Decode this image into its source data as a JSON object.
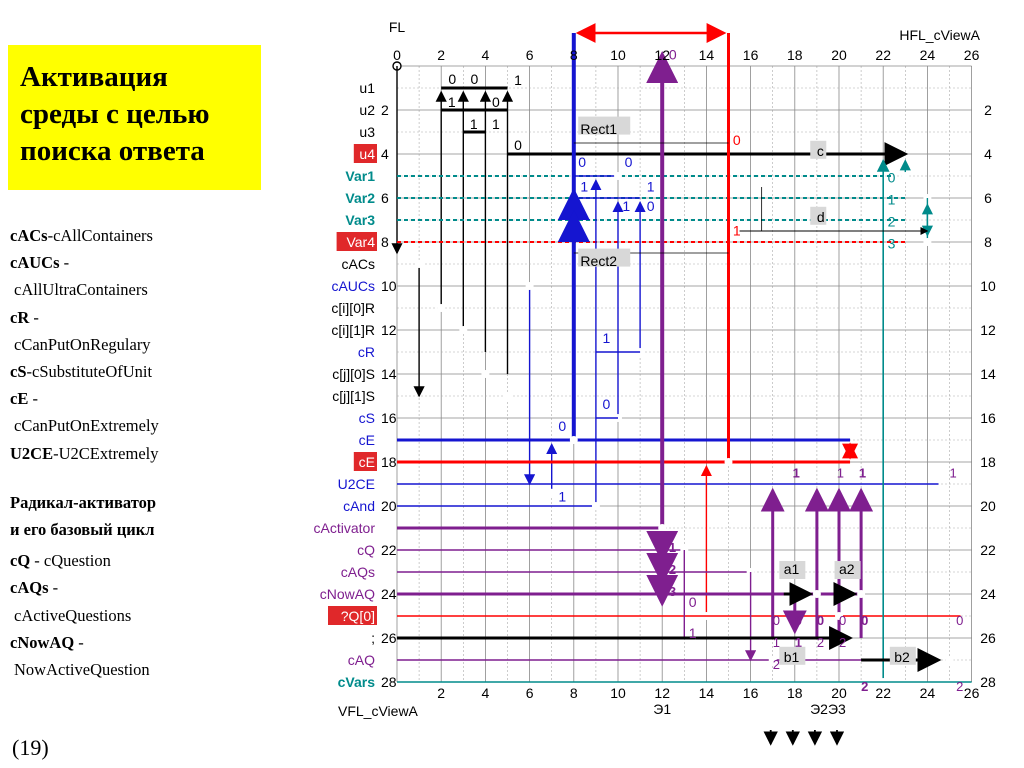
{
  "title_lines": [
    "Активация",
    "среды с целью",
    "поиска ответа"
  ],
  "glossary": [
    {
      "b": "cACs",
      "t": "-cAllContainers",
      "ind": false
    },
    {
      "b": "cAUCs",
      "t": " -",
      "ind": false
    },
    {
      "b": "",
      "t": "cAllUltraContainers",
      "ind": true
    },
    {
      "b": "cR",
      "t": " -",
      "ind": false
    },
    {
      "b": "",
      "t": "cCanPutOnRegulary",
      "ind": true
    },
    {
      "b": "cS",
      "t": "-cSubstituteOfUnit",
      "ind": false
    },
    {
      "b": "cE",
      "t": " -",
      "ind": false
    },
    {
      "b": "",
      "t": "cCanPutOnExtremely",
      "ind": true
    },
    {
      "b": "U2CE",
      "t": "-U2CExtremely",
      "ind": false
    },
    {
      "gap": true
    },
    {
      "b": "Радикал-активатор",
      "t": "",
      "ind": false
    },
    {
      "b": "и его базовый цикл",
      "t": "",
      "ind": false
    },
    {
      "gapsmall": true
    },
    {
      "b": "cQ",
      "t": " - cQuestion",
      "ind": false
    },
    {
      "b": "cAQs",
      "t": " -",
      "ind": false
    },
    {
      "b": "",
      "t": "cActiveQuestions",
      "ind": true
    },
    {
      "b": "cNowAQ",
      "t": " -",
      "ind": false
    },
    {
      "b": "",
      "t": "NowActiveQuestion",
      "ind": true
    }
  ],
  "footer": "(19)",
  "diagram": {
    "fl_label": "FL",
    "hfl_label": "HFL_cViewA",
    "vfl_label": "VFL_cViewA",
    "top_ticks": [
      "0",
      "2",
      "4",
      "6",
      "8",
      "10",
      "12",
      "14",
      "16",
      "18",
      "20",
      "22",
      "24",
      "26"
    ],
    "bottom_ticks": [
      "2",
      "4",
      "6",
      "8",
      "10",
      "12",
      "14",
      "16",
      "18",
      "20",
      "22",
      "24",
      "26"
    ],
    "right_ticks": [
      "2",
      "4",
      "6",
      "8",
      "10",
      "12",
      "14",
      "16",
      "18",
      "20",
      "22",
      "24",
      "26",
      "28"
    ],
    "rows": [
      {
        "name": "u1",
        "y": 1,
        "color": "#000000",
        "num": "",
        "hl": false,
        "bold": false
      },
      {
        "name": "u2",
        "y": 2,
        "color": "#000000",
        "num": "2",
        "hl": false,
        "bold": false
      },
      {
        "name": "u3",
        "y": 3,
        "color": "#000000",
        "num": "",
        "hl": false,
        "bold": false
      },
      {
        "name": "u4",
        "y": 4,
        "color": "#ffffff",
        "num": "4",
        "hl": true,
        "bold": false
      },
      {
        "name": "Var1",
        "y": 5,
        "color": "#008b8b",
        "num": "",
        "hl": false,
        "bold": true
      },
      {
        "name": "Var2",
        "y": 6,
        "color": "#008b8b",
        "num": "6",
        "hl": false,
        "bold": true
      },
      {
        "name": "Var3",
        "y": 7,
        "color": "#008b8b",
        "num": "",
        "hl": false,
        "bold": true
      },
      {
        "name": "Var4",
        "y": 8,
        "color": "#ffffff",
        "num": "8",
        "hl": true,
        "bold": false
      },
      {
        "name": "cACs",
        "y": 9,
        "color": "#000000",
        "num": "",
        "hl": false,
        "bold": false
      },
      {
        "name": "cAUCs",
        "y": 10,
        "color": "#1515d0",
        "num": "10",
        "hl": false,
        "bold": false
      },
      {
        "name": "c[i][0]R",
        "y": 11,
        "color": "#000000",
        "num": "",
        "hl": false,
        "bold": false
      },
      {
        "name": "c[i][1]R",
        "y": 12,
        "color": "#000000",
        "num": "12",
        "hl": false,
        "bold": false
      },
      {
        "name": "cR",
        "y": 13,
        "color": "#1515d0",
        "num": "",
        "hl": false,
        "bold": false
      },
      {
        "name": "c[j][0]S",
        "y": 14,
        "color": "#000000",
        "num": "14",
        "hl": false,
        "bold": false
      },
      {
        "name": "c[j][1]S",
        "y": 15,
        "color": "#000000",
        "num": "",
        "hl": false,
        "bold": false
      },
      {
        "name": "cS",
        "y": 16,
        "color": "#1515d0",
        "num": "16",
        "hl": false,
        "bold": false
      },
      {
        "name": "cE",
        "y": 17,
        "color": "#1515d0",
        "num": "",
        "hl": false,
        "bold": false
      },
      {
        "name": "cE",
        "y": 18,
        "color": "#ffffff",
        "num": "18",
        "hl": true,
        "bold": false
      },
      {
        "name": "U2CE",
        "y": 19,
        "color": "#1515d0",
        "num": "",
        "hl": false,
        "bold": false
      },
      {
        "name": "cAnd",
        "y": 20,
        "color": "#1515d0",
        "num": "20",
        "hl": false,
        "bold": false
      },
      {
        "name": "cActivator",
        "y": 21,
        "color": "#7f1f8f",
        "num": "",
        "hl": false,
        "bold": false
      },
      {
        "name": "cQ",
        "y": 22,
        "color": "#7f1f8f",
        "num": "22",
        "hl": false,
        "bold": false
      },
      {
        "name": "cAQs",
        "y": 23,
        "color": "#7f1f8f",
        "num": "",
        "hl": false,
        "bold": false
      },
      {
        "name": "cNowAQ",
        "y": 24,
        "color": "#7f1f8f",
        "num": "24",
        "hl": false,
        "bold": false
      },
      {
        "name": "?Q[0]",
        "y": 25,
        "color": "#ffffff",
        "num": "",
        "hl": true,
        "bold": false
      },
      {
        "name": ";",
        "y": 26,
        "color": "#000000",
        "num": "26",
        "hl": false,
        "bold": false
      },
      {
        "name": "cAQ",
        "y": 27,
        "color": "#7f1f8f",
        "num": "",
        "hl": false,
        "bold": false
      },
      {
        "name": "cVars",
        "y": 28,
        "color": "#008b8b",
        "num": "28",
        "hl": false,
        "bold": true
      }
    ],
    "boxes": {
      "rect1": "Rect1",
      "rect2": "Rect2",
      "c": "c",
      "d": "d",
      "a1": "a1",
      "a2": "a2",
      "b1": "b1",
      "b2": "b2"
    },
    "bottom_marks": {
      "e1": "Э1",
      "e2e3": "Э2Э3"
    },
    "colors": {
      "blue": "#1515d0",
      "red": "#ff0000",
      "purple": "#7f1f8f",
      "teal": "#008b8b",
      "black": "#000000",
      "highlight": "#e0282a",
      "box": "#d8d8d8"
    }
  }
}
